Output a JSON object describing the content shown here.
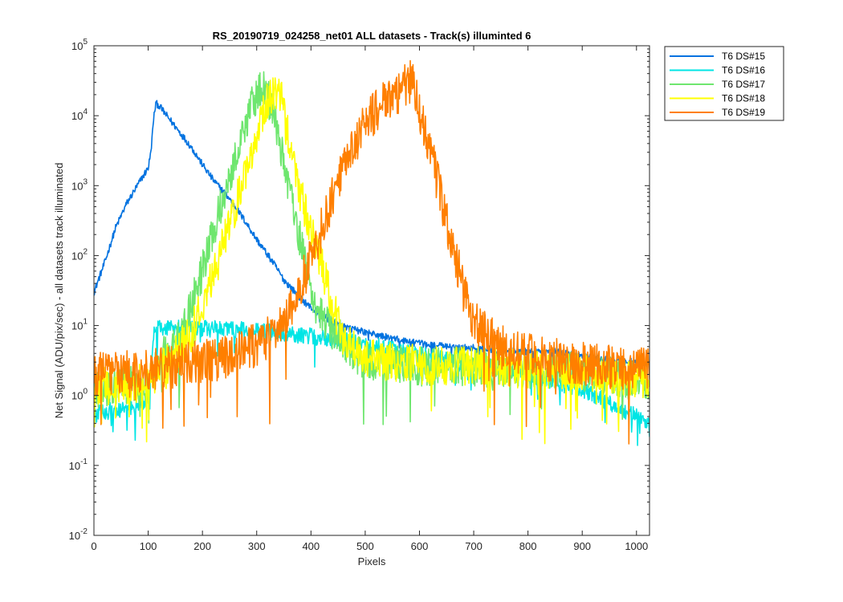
{
  "chart_data": {
    "type": "line",
    "title": "RS_20190719_024258_net01 ALL datasets - Track(s) illuminted 6",
    "xlabel": "Pixels",
    "ylabel": "Net Signal (ADU/pix/sec) - all datasets track illuminated",
    "xlim": [
      0,
      1024
    ],
    "ylim": [
      0.01,
      100000
    ],
    "yscale": "log",
    "grid": false,
    "legend_position": "outside-top-right",
    "x_ticks": [
      0,
      100,
      200,
      300,
      400,
      500,
      600,
      700,
      800,
      900,
      1000
    ],
    "x_tick_labels": [
      "0",
      "100",
      "200",
      "300",
      "400",
      "500",
      "600",
      "700",
      "800",
      "900",
      "1000"
    ],
    "y_ticks": [
      0.01,
      0.1,
      1,
      10,
      100,
      1000,
      10000,
      100000
    ],
    "y_tick_labels": [
      {
        "base": "10",
        "exp": "-2"
      },
      {
        "base": "10",
        "exp": "-1"
      },
      {
        "base": "10",
        "exp": "0"
      },
      {
        "base": "10",
        "exp": "1"
      },
      {
        "base": "10",
        "exp": "2"
      },
      {
        "base": "10",
        "exp": "3"
      },
      {
        "base": "10",
        "exp": "4"
      },
      {
        "base": "10",
        "exp": "5"
      }
    ],
    "series": [
      {
        "name": "T6 DS#15",
        "color": "#0072e0",
        "noise_level": 0.05,
        "x": [
          0,
          20,
          40,
          60,
          80,
          100,
          105,
          110,
          114,
          120,
          130,
          150,
          180,
          200,
          220,
          250,
          280,
          300,
          330,
          350,
          380,
          400,
          450,
          500,
          550,
          600,
          650,
          700,
          750,
          800,
          850,
          900,
          950,
          1000,
          1024
        ],
        "y": [
          30,
          80,
          250,
          550,
          1000,
          1800,
          3000,
          9000,
          15000,
          14000,
          11000,
          7000,
          3500,
          2000,
          1200,
          650,
          300,
          170,
          80,
          45,
          25,
          18,
          10,
          8,
          6.5,
          5.5,
          5,
          4.8,
          4.4,
          4.2,
          4.3,
          3.6,
          3.2,
          3.0,
          2.8
        ]
      },
      {
        "name": "T6 DS#16",
        "color": "#00e5e5",
        "noise_level": 0.12,
        "x": [
          0,
          20,
          40,
          60,
          80,
          100,
          104,
          108,
          112,
          118,
          150,
          200,
          250,
          300,
          350,
          400,
          450,
          500,
          550,
          600,
          700,
          800,
          900,
          950,
          1000,
          1024
        ],
        "y": [
          0.5,
          0.6,
          0.6,
          0.65,
          0.7,
          0.9,
          1.5,
          4.5,
          9,
          9,
          9.2,
          9,
          9,
          8.3,
          7.8,
          7,
          6.2,
          5.5,
          4.6,
          3.8,
          2.8,
          2.0,
          1.2,
          0.8,
          0.5,
          0.4
        ]
      },
      {
        "name": "T6 DS#17",
        "color": "#6ee66e",
        "noise_level": 0.28,
        "x": [
          0,
          50,
          100,
          130,
          150,
          170,
          200,
          230,
          260,
          280,
          295,
          305,
          310,
          318,
          330,
          350,
          370,
          390,
          410,
          430,
          450,
          470,
          500,
          550,
          600,
          700,
          800,
          900,
          1000,
          1024
        ],
        "y": [
          1.2,
          1.3,
          1.5,
          4,
          6,
          12,
          60,
          400,
          2500,
          8000,
          17000,
          24000,
          26000,
          22000,
          11000,
          2200,
          400,
          70,
          18,
          10,
          7,
          4.5,
          3.2,
          2.8,
          2.6,
          2.5,
          2.4,
          2.2,
          1.6,
          1.5
        ]
      },
      {
        "name": "T6 DS#18",
        "color": "#ffff00",
        "noise_level": 0.28,
        "x": [
          0,
          50,
          100,
          120,
          140,
          160,
          180,
          200,
          230,
          260,
          290,
          310,
          325,
          335,
          345,
          360,
          380,
          400,
          420,
          440,
          460,
          480,
          500,
          550,
          600,
          700,
          800,
          900,
          1000,
          1024
        ],
        "y": [
          1.3,
          1.4,
          1.5,
          2.2,
          3,
          5,
          8,
          20,
          90,
          500,
          3000,
          10000,
          20000,
          24000,
          18000,
          4000,
          800,
          230,
          70,
          20,
          7,
          4.5,
          3.5,
          3,
          2.8,
          2.6,
          2.4,
          2.2,
          1.8,
          1.7
        ]
      },
      {
        "name": "T6 DS#19",
        "color": "#ff7f00",
        "noise_level": 0.32,
        "x": [
          0,
          50,
          100,
          150,
          200,
          250,
          280,
          300,
          320,
          340,
          360,
          380,
          400,
          420,
          440,
          460,
          480,
          500,
          520,
          540,
          560,
          575,
          583,
          590,
          600,
          620,
          640,
          660,
          680,
          700,
          720,
          750,
          800,
          850,
          900,
          950,
          1000,
          1024
        ],
        "y": [
          2.0,
          2.2,
          2.4,
          2.6,
          3.0,
          3.6,
          4.5,
          5.5,
          7,
          9,
          15,
          35,
          90,
          250,
          700,
          1800,
          4000,
          7500,
          12000,
          16000,
          22000,
          27000,
          30000,
          25000,
          12000,
          3200,
          700,
          150,
          35,
          12,
          8,
          5,
          3.8,
          3.2,
          2.8,
          2.6,
          2.4,
          2.2
        ]
      }
    ]
  }
}
